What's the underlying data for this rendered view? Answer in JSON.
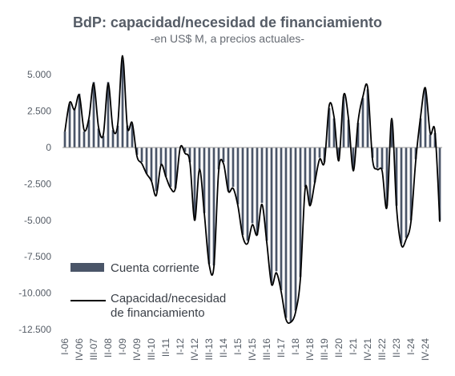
{
  "chart_data": {
    "type": "bar+line",
    "title": "BdP: capacidad/necesidad de financiamiento",
    "subtitle": "-en US$ M, a precios actuales-",
    "xlabel": "",
    "ylabel": "",
    "ylim": [
      -12500,
      6500
    ],
    "yticks": [
      5000,
      2500,
      0,
      -2500,
      -5000,
      -7500,
      -10000,
      -12500
    ],
    "ytick_labels": [
      "5.000",
      "2.500",
      "0",
      "-2.500",
      "-5.000",
      "-7.500",
      "-10.000",
      "-12.500"
    ],
    "xtick_labels": [
      "I-06",
      "IV-06",
      "III-07",
      "II-08",
      "I-09",
      "IV-09",
      "III-10",
      "II-11",
      "I-12",
      "IV-12",
      "III-13",
      "II-14",
      "I-15",
      "IV-15",
      "III-16",
      "II-17",
      "I-18",
      "IV-18",
      "III-19",
      "II-20",
      "I-21",
      "IV-21",
      "III-22",
      "II-23",
      "I-24",
      "IV-24"
    ],
    "xtick_every": 3,
    "legend_placement": "bottom-left",
    "grid": false,
    "colors": {
      "bar": "#4a5568",
      "line": "#000000",
      "axis": "#999999",
      "text": "#555c66"
    },
    "series": [
      {
        "name": "Cuenta corriente",
        "kind": "bar",
        "values": [
          1100,
          3000,
          2700,
          3700,
          1100,
          1900,
          4500,
          1300,
          800,
          4500,
          1200,
          1500,
          6000,
          1500,
          1600,
          -500,
          -1000,
          -1800,
          -2300,
          -3000,
          -1200,
          -2000,
          -2700,
          -2800,
          0,
          -300,
          -1000,
          -5000,
          -1500,
          -4500,
          -8000,
          -8100,
          -1500,
          -1000,
          -3000,
          -2700,
          -3900,
          -6000,
          -6400,
          -5200,
          -6000,
          -3800,
          -6400,
          -9300,
          -8500,
          -9800,
          -11700,
          -12000,
          -11200,
          -8900,
          -2700,
          -3900,
          -2400,
          -700,
          -1000,
          2700,
          2000,
          -800,
          3500,
          1900,
          -1500,
          1700,
          3400,
          4000,
          -700,
          -1400,
          -1500,
          -4000,
          1900,
          -4000,
          -6600,
          -6200,
          -5000,
          -800,
          2000,
          4000,
          900,
          1000,
          -5000
        ],
        "values_note": ""
      },
      {
        "name": "Capacidad/necesidad de financiamiento",
        "kind": "line",
        "values": [
          1100,
          3100,
          2600,
          3600,
          1200,
          2000,
          4400,
          1400,
          900,
          4400,
          1300,
          1600,
          6300,
          1400,
          1700,
          -600,
          -1100,
          -1800,
          -2300,
          -3300,
          -1200,
          -2000,
          -2800,
          -2800,
          0,
          -400,
          -1000,
          -5000,
          -1500,
          -4500,
          -8000,
          -8200,
          -1600,
          -1100,
          -3000,
          -2800,
          -4000,
          -6100,
          -6600,
          -5300,
          -6000,
          -3900,
          -6500,
          -9400,
          -8600,
          -9900,
          -11800,
          -12000,
          -11300,
          -9000,
          -2800,
          -4000,
          -2400,
          -800,
          -1000,
          2900,
          2100,
          -900,
          3600,
          2000,
          -1600,
          1800,
          3500,
          4100,
          -800,
          -1500,
          -1600,
          -4100,
          2000,
          -4100,
          -6700,
          -6300,
          -5100,
          -900,
          2100,
          4100,
          1000,
          1100,
          -5100
        ]
      }
    ]
  }
}
